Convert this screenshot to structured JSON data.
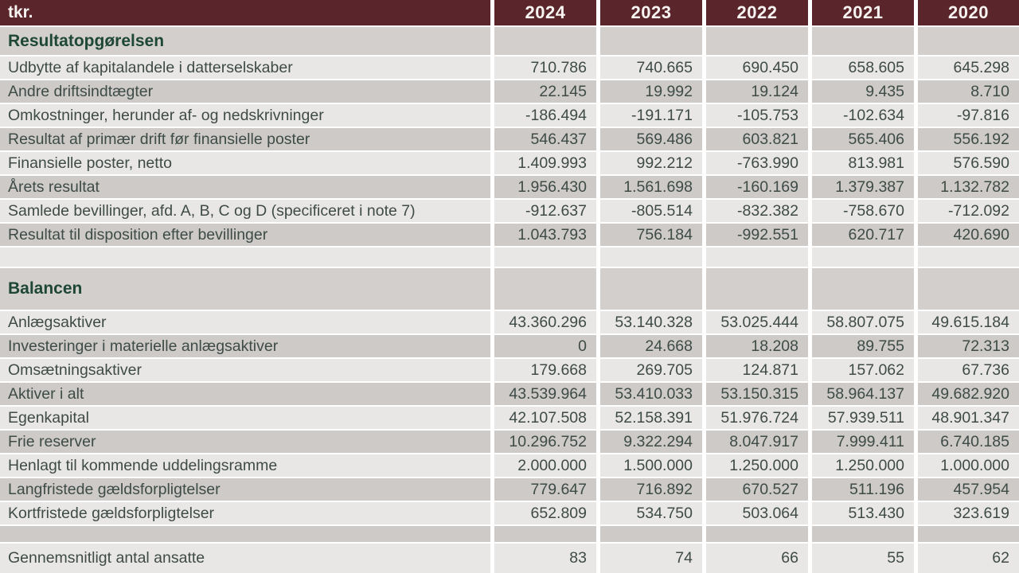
{
  "table": {
    "unit_label": "tkr.",
    "years": [
      "2024",
      "2023",
      "2022",
      "2021",
      "2020"
    ],
    "rows": [
      {
        "type": "section",
        "label": "Resultatopgørelsen"
      },
      {
        "type": "data",
        "label": "Udbytte af kapitalandele i datterselskaber",
        "values": [
          "710.786",
          "740.665",
          "690.450",
          "658.605",
          "645.298"
        ]
      },
      {
        "type": "data",
        "label": "Andre driftsindtægter",
        "values": [
          "22.145",
          "19.992",
          "19.124",
          "9.435",
          "8.710"
        ]
      },
      {
        "type": "data",
        "label": "Omkostninger, herunder af- og nedskrivninger",
        "values": [
          "-186.494",
          "-191.171",
          "-105.753",
          "-102.634",
          "-97.816"
        ]
      },
      {
        "type": "data",
        "label": "Resultat af primær drift før finansielle poster",
        "values": [
          "546.437",
          "569.486",
          "603.821",
          "565.406",
          "556.192"
        ]
      },
      {
        "type": "data",
        "label": "Finansielle poster, netto",
        "values": [
          "1.409.993",
          "992.212",
          "-763.990",
          "813.981",
          "576.590"
        ]
      },
      {
        "type": "data",
        "label": "Årets resultat",
        "values": [
          "1.956.430",
          "1.561.698",
          "-160.169",
          "1.379.387",
          "1.132.782"
        ]
      },
      {
        "type": "data",
        "label": "Samlede bevillinger, afd. A, B, C og D (specificeret i note 7)",
        "values": [
          "-912.637",
          "-805.514",
          "-832.382",
          "-758.670",
          "-712.092"
        ]
      },
      {
        "type": "data",
        "label": "Resultat til disposition efter bevillinger",
        "values": [
          "1.043.793",
          "756.184",
          "-992.551",
          "620.717",
          "420.690"
        ]
      },
      {
        "type": "spacer",
        "label": ""
      },
      {
        "type": "section",
        "label": "Balancen"
      },
      {
        "type": "data",
        "label": "Anlægsaktiver",
        "values": [
          "43.360.296",
          "53.140.328",
          "53.025.444",
          "58.807.075",
          "49.615.184"
        ]
      },
      {
        "type": "data",
        "label": "Investeringer i materielle anlægsaktiver",
        "values": [
          "0",
          "24.668",
          "18.208",
          "89.755",
          "72.313"
        ]
      },
      {
        "type": "data",
        "label": "Omsætningsaktiver",
        "values": [
          "179.668",
          "269.705",
          "124.871",
          "157.062",
          "67.736"
        ]
      },
      {
        "type": "data",
        "label": "Aktiver i alt",
        "values": [
          "43.539.964",
          "53.410.033",
          "53.150.315",
          "58.964.137",
          "49.682.920"
        ]
      },
      {
        "type": "data",
        "label": "Egenkapital",
        "values": [
          "42.107.508",
          "52.158.391",
          "51.976.724",
          "57.939.511",
          "48.901.347"
        ]
      },
      {
        "type": "data",
        "label": "Frie reserver",
        "values": [
          "10.296.752",
          "9.322.294",
          "8.047.917",
          "7.999.411",
          "6.740.185"
        ]
      },
      {
        "type": "data",
        "label": "Henlagt til kommende uddelingsramme",
        "values": [
          "2.000.000",
          "1.500.000",
          "1.250.000",
          "1.250.000",
          "1.000.000"
        ]
      },
      {
        "type": "data",
        "label": "Langfristede gældsforpligtelser",
        "values": [
          "779.647",
          "716.892",
          "670.527",
          "511.196",
          "457.954"
        ]
      },
      {
        "type": "data",
        "label": "Kortfristede gældsforpligtelser",
        "values": [
          "652.809",
          "534.750",
          "503.064",
          "513.430",
          "323.619"
        ]
      },
      {
        "type": "spacer",
        "label": ""
      },
      {
        "type": "data",
        "label": "Gennemsnitligt antal ansatte",
        "values": [
          "83",
          "74",
          "66",
          "55",
          "62"
        ]
      }
    ]
  },
  "colors": {
    "header_bg": "#5a262b",
    "header_text": "#f7f4f1",
    "row_light": "#e9e7e5",
    "row_dark": "#cdcac8",
    "section_bg": "#d2cfcd",
    "text": "#3e4b47",
    "section_text": "#1e4737"
  }
}
